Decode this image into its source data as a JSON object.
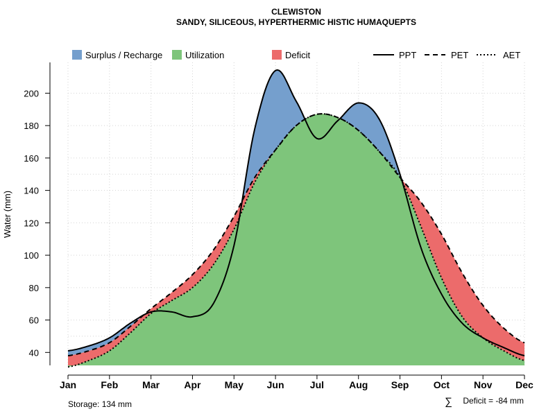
{
  "chart_data": {
    "type": "area",
    "title": "CLEWISTON",
    "subtitle": "SANDY, SILICEOUS, HYPERTHERMIC HISTIC HUMAQUEPTS",
    "xlabel": "",
    "ylabel": "Water (mm)",
    "ylim": [
      32,
      219
    ],
    "yticks": [
      40,
      60,
      80,
      100,
      120,
      140,
      160,
      180,
      200
    ],
    "categories": [
      "Jan",
      "Feb",
      "Mar",
      "Apr",
      "May",
      "Jun",
      "Jul",
      "Aug",
      "Sep",
      "Oct",
      "Nov",
      "Dec"
    ],
    "grid": true,
    "legend": [
      {
        "label": "Surplus / Recharge",
        "kind": "fill",
        "color": "#759FCD"
      },
      {
        "label": "Utilization",
        "kind": "fill",
        "color": "#7EC57B"
      },
      {
        "label": "Deficit",
        "kind": "fill",
        "color": "#EC6B6B"
      },
      {
        "label": "PPT",
        "kind": "line",
        "dash": "solid"
      },
      {
        "label": "PET",
        "kind": "line",
        "dash": "dashed"
      },
      {
        "label": "AET",
        "kind": "line",
        "dash": "dotted"
      }
    ],
    "series": [
      {
        "name": "PPT",
        "x": [
          1,
          1.5,
          2,
          2.5,
          3,
          3.5,
          4,
          4.5,
          5,
          5.5,
          6,
          6.5,
          7,
          7.5,
          8,
          8.5,
          9,
          9.5,
          10,
          10.5,
          11,
          11.5,
          12
        ],
        "values": [
          41,
          44,
          49,
          58,
          65,
          65,
          62,
          70,
          106,
          178,
          214,
          195,
          172,
          183,
          194,
          184,
          150,
          105,
          76,
          58,
          49,
          43,
          38
        ]
      },
      {
        "name": "PET",
        "x": [
          1,
          1.5,
          2,
          2.5,
          3,
          3.5,
          4,
          4.5,
          5,
          5.5,
          6,
          6.5,
          7,
          7.5,
          8,
          8.5,
          9,
          9.5,
          10,
          10.5,
          11,
          11.5,
          12
        ],
        "values": [
          38,
          41,
          46,
          56,
          67,
          77,
          88,
          103,
          124,
          148,
          165,
          180,
          187,
          185,
          177,
          164,
          148,
          133,
          113,
          89,
          69,
          55,
          46
        ]
      },
      {
        "name": "AET",
        "x": [
          1,
          1.5,
          2,
          2.5,
          3,
          3.5,
          4,
          4.5,
          5,
          5.5,
          6,
          6.5,
          7,
          7.5,
          8,
          8.5,
          9,
          9.5,
          10,
          10.5,
          11,
          11.5,
          12
        ],
        "values": [
          31,
          35,
          41,
          52,
          64,
          72,
          80,
          94,
          116,
          145,
          165,
          180,
          187,
          185,
          177,
          164,
          148,
          118,
          86,
          62,
          49,
          41,
          35
        ]
      }
    ],
    "annotations": {
      "storage": "Storage: 134 mm",
      "deficit_symbol": "∑",
      "deficit": "Deficit = -84 mm"
    },
    "colors": {
      "surplus": "#759FCD",
      "utilization": "#7EC57B",
      "deficit": "#EC6B6B",
      "grid": "#D3D3D3"
    }
  }
}
